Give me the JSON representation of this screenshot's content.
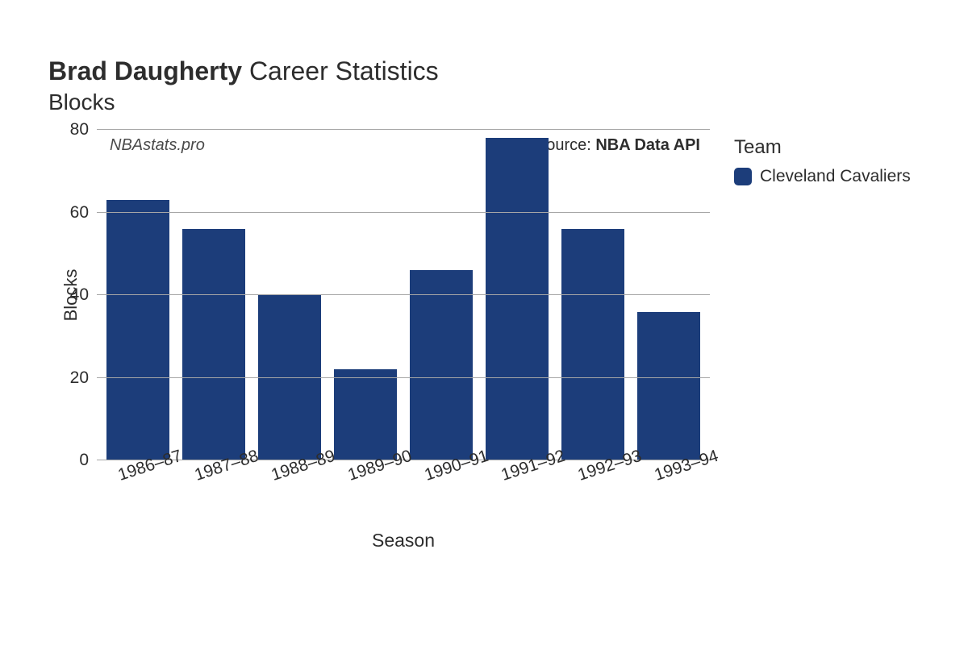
{
  "title": {
    "bold_part": "Brad Daugherty",
    "light_part": " Career Statistics",
    "subtitle": "Blocks"
  },
  "watermark": "NBAstats.pro",
  "source": {
    "prefix": "Source: ",
    "name": "NBA Data API"
  },
  "chart": {
    "type": "bar",
    "background_color": "#ffffff",
    "grid_color": "#a6a6a6",
    "bar_color": "#1c3d7a",
    "bar_width_ratio": 0.84,
    "text_color": "#2d2d2d",
    "tick_fontsize": 21,
    "axis_title_fontsize": 23,
    "y_axis": {
      "title": "Blocks",
      "min": 0,
      "max": 80,
      "ticks": [
        0,
        20,
        40,
        60,
        80
      ]
    },
    "x_axis": {
      "title": "Season",
      "label_rotation_deg": -18
    },
    "categories": [
      "1986–87",
      "1987–88",
      "1988–89",
      "1989–90",
      "1990–91",
      "1991–92",
      "1992–93",
      "1993–94"
    ],
    "values": [
      63,
      56,
      40,
      22,
      46,
      78,
      56,
      36
    ]
  },
  "legend": {
    "title": "Team",
    "items": [
      {
        "label": "Cleveland Cavaliers",
        "color": "#1c3d7a"
      }
    ]
  }
}
